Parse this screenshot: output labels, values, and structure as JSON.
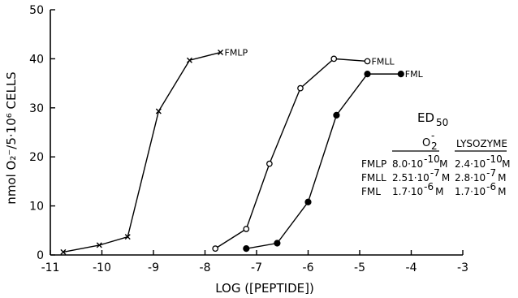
{
  "chart_data": {
    "type": "line",
    "title": "",
    "xlabel": "LOG ([PEPTIDE])",
    "ylabel": "nmol O₂⁻/5·10⁶ CELLS",
    "xlim": [
      -11,
      -3
    ],
    "ylim": [
      0,
      50
    ],
    "xticks": [
      "-11",
      "-10",
      "-9",
      "-8",
      "-7",
      "-6",
      "-5",
      "-4",
      "-3"
    ],
    "yticks": [
      "0",
      "10",
      "20",
      "30",
      "40",
      "50"
    ],
    "grid": false,
    "series": [
      {
        "name": "FMLP",
        "marker": "cross",
        "x": [
          -10.75,
          -10.05,
          -9.5,
          -8.9,
          -8.3,
          -7.7
        ],
        "y": [
          0.6,
          2.0,
          3.7,
          29.3,
          39.7,
          41.3
        ]
      },
      {
        "name": "FMLL",
        "marker": "open-circle",
        "x": [
          -7.8,
          -7.2,
          -6.75,
          -6.15,
          -5.5,
          -4.85
        ],
        "y": [
          1.3,
          5.3,
          18.6,
          34.0,
          40.0,
          39.5
        ]
      },
      {
        "name": "FML",
        "marker": "filled-circle",
        "x": [
          -7.2,
          -6.6,
          -6.0,
          -5.45,
          -4.85,
          -4.2
        ],
        "y": [
          1.3,
          2.4,
          10.8,
          28.5,
          36.9,
          36.9
        ]
      }
    ],
    "ed50_table": {
      "title": "ED50",
      "columns": [
        "O2-",
        "LYSOZYME"
      ],
      "rows": [
        {
          "peptide": "FMLP",
          "o2_mantissa": "8.0·10",
          "o2_exp": "-10",
          "o2_unit": "M",
          "lys_mantissa": "2.4·10",
          "lys_exp": "-10",
          "lys_unit": "M"
        },
        {
          "peptide": "FMLL",
          "o2_mantissa": "2.51·10",
          "o2_exp": "-7",
          "o2_unit": "M",
          "lys_mantissa": "2.8·10",
          "lys_exp": "-7",
          "lys_unit": "M"
        },
        {
          "peptide": "FML",
          "o2_mantissa": "1.7·10",
          "o2_exp": "-6",
          "o2_unit": "M",
          "lys_mantissa": "1.7·10",
          "lys_exp": "-6",
          "lys_unit": "M"
        }
      ]
    }
  }
}
